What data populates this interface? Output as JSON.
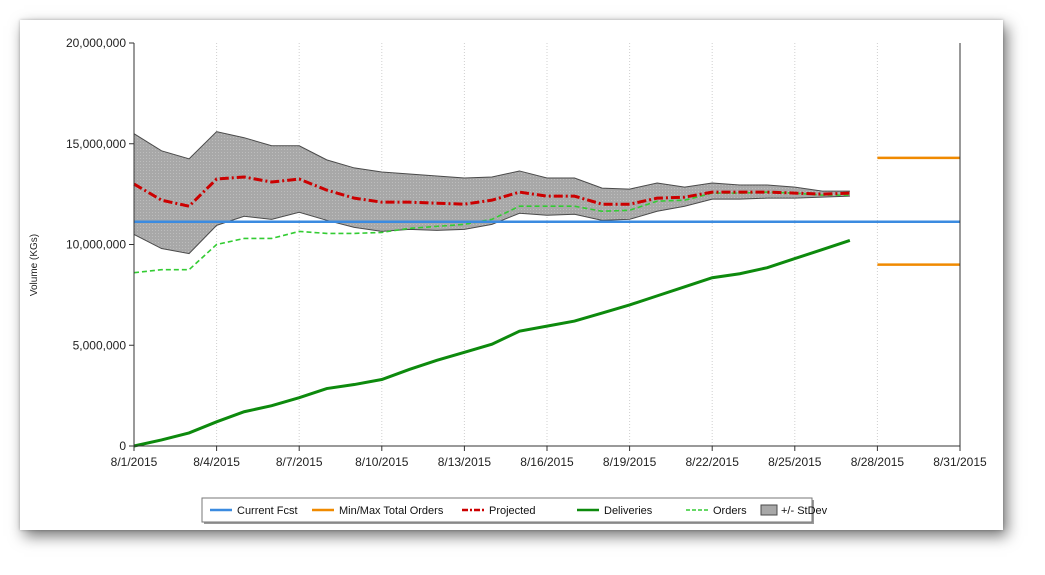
{
  "chart_data": {
    "type": "line",
    "title": "",
    "xlabel": "",
    "ylabel": "Volume (KGs)",
    "xlim": [
      "8/1/2015",
      "8/31/2015"
    ],
    "ylim": [
      0,
      20000000
    ],
    "x_ticks": [
      "8/1/2015",
      "8/4/2015",
      "8/7/2015",
      "8/10/2015",
      "8/13/2015",
      "8/16/2015",
      "8/19/2015",
      "8/22/2015",
      "8/25/2015",
      "8/28/2015",
      "8/31/2015"
    ],
    "y_ticks": [
      "0",
      "5,000,000",
      "10,000,000",
      "15,000,000",
      "20,000,000"
    ],
    "y_tick_values": [
      0,
      5000000,
      10000000,
      15000000,
      20000000
    ],
    "grid": "vertical",
    "legend_position": "bottom",
    "colors": {
      "current_fcst": "#3b8be0",
      "minmax": "#f08a00",
      "projected": "#cc0000",
      "deliveries": "#0d8a0d",
      "orders": "#33cc33",
      "stdev_fill": "#aaaaaa",
      "stdev_stroke": "#4a4a4a"
    },
    "series": [
      {
        "name": "Current Fcst",
        "style": "solid",
        "x": [
          "8/1/2015",
          "8/31/2015"
        ],
        "values": [
          11130000,
          11130000
        ]
      },
      {
        "name": "Min/Max Total Orders",
        "style": "solid",
        "segments": [
          {
            "x": [
              "8/28/2015",
              "8/31/2015"
            ],
            "values": [
              14300000,
              14300000
            ]
          },
          {
            "x": [
              "8/28/2015",
              "8/31/2015"
            ],
            "values": [
              9000000,
              9000000
            ]
          }
        ]
      },
      {
        "name": "Projected",
        "style": "dash-dot",
        "x": [
          "8/1/2015",
          "8/2/2015",
          "8/3/2015",
          "8/4/2015",
          "8/5/2015",
          "8/6/2015",
          "8/7/2015",
          "8/8/2015",
          "8/9/2015",
          "8/10/2015",
          "8/11/2015",
          "8/12/2015",
          "8/13/2015",
          "8/14/2015",
          "8/15/2015",
          "8/16/2015",
          "8/17/2015",
          "8/18/2015",
          "8/19/2015",
          "8/20/2015",
          "8/21/2015",
          "8/22/2015",
          "8/23/2015",
          "8/24/2015",
          "8/25/2015",
          "8/26/2015",
          "8/27/2015"
        ],
        "values": [
          13000000,
          12200000,
          11900000,
          13250000,
          13350000,
          13100000,
          13250000,
          12700000,
          12300000,
          12100000,
          12100000,
          12050000,
          12000000,
          12200000,
          12600000,
          12400000,
          12400000,
          12000000,
          12000000,
          12300000,
          12350000,
          12600000,
          12600000,
          12600000,
          12550000,
          12500000,
          12550000
        ]
      },
      {
        "name": "Deliveries",
        "style": "solid",
        "x": [
          "8/1/2015",
          "8/2/2015",
          "8/3/2015",
          "8/4/2015",
          "8/5/2015",
          "8/6/2015",
          "8/7/2015",
          "8/8/2015",
          "8/9/2015",
          "8/10/2015",
          "8/11/2015",
          "8/12/2015",
          "8/13/2015",
          "8/14/2015",
          "8/15/2015",
          "8/16/2015",
          "8/17/2015",
          "8/18/2015",
          "8/19/2015",
          "8/20/2015",
          "8/21/2015",
          "8/22/2015",
          "8/23/2015",
          "8/24/2015",
          "8/25/2015",
          "8/26/2015",
          "8/27/2015"
        ],
        "values": [
          0,
          300000,
          650000,
          1200000,
          1700000,
          2000000,
          2400000,
          2850000,
          3050000,
          3300000,
          3800000,
          4250000,
          4650000,
          5050000,
          5700000,
          5950000,
          6200000,
          6600000,
          7000000,
          7450000,
          7900000,
          8350000,
          8550000,
          8850000,
          9300000,
          9750000,
          10200000
        ]
      },
      {
        "name": "Orders",
        "style": "dashed",
        "x": [
          "8/1/2015",
          "8/2/2015",
          "8/3/2015",
          "8/4/2015",
          "8/5/2015",
          "8/6/2015",
          "8/7/2015",
          "8/8/2015",
          "8/9/2015",
          "8/10/2015",
          "8/11/2015",
          "8/12/2015",
          "8/13/2015",
          "8/14/2015",
          "8/15/2015",
          "8/16/2015",
          "8/17/2015",
          "8/18/2015",
          "8/19/2015",
          "8/20/2015",
          "8/21/2015",
          "8/22/2015",
          "8/23/2015",
          "8/24/2015",
          "8/25/2015",
          "8/26/2015",
          "8/27/2015"
        ],
        "values": [
          8600000,
          8750000,
          8750000,
          10000000,
          10300000,
          10300000,
          10650000,
          10550000,
          10550000,
          10600000,
          10800000,
          10900000,
          11000000,
          11250000,
          11900000,
          11900000,
          11900000,
          11650000,
          11700000,
          12150000,
          12200000,
          12550000,
          12550000,
          12600000,
          12550000,
          12450000,
          12450000
        ]
      },
      {
        "name": "+/- StDev",
        "style": "band",
        "x": [
          "8/1/2015",
          "8/2/2015",
          "8/3/2015",
          "8/4/2015",
          "8/5/2015",
          "8/6/2015",
          "8/7/2015",
          "8/8/2015",
          "8/9/2015",
          "8/10/2015",
          "8/11/2015",
          "8/12/2015",
          "8/13/2015",
          "8/14/2015",
          "8/15/2015",
          "8/16/2015",
          "8/17/2015",
          "8/18/2015",
          "8/19/2015",
          "8/20/2015",
          "8/21/2015",
          "8/22/2015",
          "8/23/2015",
          "8/24/2015",
          "8/25/2015",
          "8/26/2015",
          "8/27/2015"
        ],
        "upper": [
          15500000,
          14650000,
          14250000,
          15600000,
          15300000,
          14900000,
          14900000,
          14200000,
          13800000,
          13600000,
          13500000,
          13400000,
          13300000,
          13350000,
          13650000,
          13300000,
          13300000,
          12800000,
          12750000,
          13050000,
          12850000,
          13050000,
          12950000,
          12950000,
          12850000,
          12650000,
          12650000
        ],
        "lower": [
          10500000,
          9800000,
          9550000,
          10950000,
          11400000,
          11250000,
          11600000,
          11200000,
          10850000,
          10650000,
          10750000,
          10700000,
          10750000,
          11000000,
          11550000,
          11450000,
          11500000,
          11200000,
          11250000,
          11650000,
          11900000,
          12250000,
          12250000,
          12300000,
          12300000,
          12350000,
          12400000
        ]
      }
    ]
  }
}
